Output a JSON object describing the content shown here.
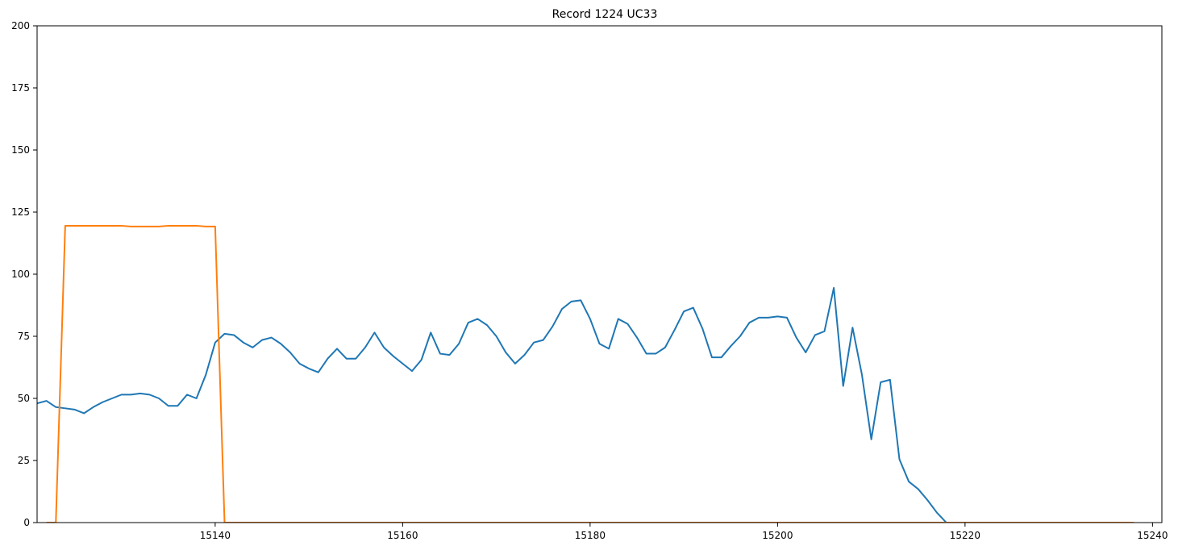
{
  "chart_data": {
    "type": "line",
    "title": "Record 1224 UC33",
    "xlabel": "",
    "ylabel": "",
    "xlim": [
      15121,
      15241
    ],
    "ylim": [
      0,
      200
    ],
    "xticks": [
      15140,
      15160,
      15180,
      15200,
      15220,
      15240
    ],
    "yticks": [
      0,
      25,
      50,
      75,
      100,
      125,
      150,
      175,
      200
    ],
    "grid": false,
    "legend": "none",
    "colors": [
      "#1f77b4",
      "#ff7f0e"
    ],
    "series": [
      {
        "x": [
          15121,
          15122,
          15123,
          15124,
          15125,
          15126,
          15127,
          15128,
          15129,
          15130,
          15131,
          15132,
          15133,
          15134,
          15135,
          15136,
          15137,
          15138,
          15139,
          15140,
          15141,
          15142,
          15143,
          15144,
          15145,
          15146,
          15147,
          15148,
          15149,
          15150,
          15151,
          15152,
          15153,
          15154,
          15155,
          15156,
          15157,
          15158,
          15159,
          15160,
          15161,
          15162,
          15163,
          15164,
          15165,
          15166,
          15167,
          15168,
          15169,
          15170,
          15171,
          15172,
          15173,
          15174,
          15175,
          15176,
          15177,
          15178,
          15179,
          15180,
          15181,
          15182,
          15183,
          15184,
          15185,
          15186,
          15187,
          15188,
          15189,
          15190,
          15191,
          15192,
          15193,
          15194,
          15195,
          15196,
          15197,
          15198,
          15199,
          15200,
          15201,
          15202,
          15203,
          15204,
          15205,
          15206,
          15207,
          15208,
          15209,
          15210,
          15211,
          15212,
          15213,
          15214,
          15215,
          15216,
          15217,
          15218,
          15219,
          15220,
          15221,
          15222,
          15223,
          15224,
          15225,
          15226,
          15227,
          15228,
          15229,
          15230,
          15231,
          15232,
          15233,
          15234,
          15235,
          15236,
          15237,
          15238
        ],
        "values": [
          48,
          49,
          46.5,
          46,
          45.5,
          44,
          46.5,
          48.5,
          50,
          51.5,
          51.5,
          52,
          51.5,
          50,
          47,
          47,
          51.5,
          50,
          59.5,
          72.5,
          76,
          75.5,
          72.5,
          70.5,
          73.5,
          74.5,
          72,
          68.5,
          64,
          62,
          60.5,
          66,
          70,
          66,
          66,
          70.5,
          76.5,
          70.5,
          67,
          64,
          61,
          65.5,
          76.5,
          68,
          67.5,
          72,
          80.5,
          82,
          79.5,
          75,
          68.5,
          64,
          67.5,
          72.5,
          73.5,
          79,
          86,
          89,
          89.5,
          82,
          72,
          70,
          82,
          80,
          74.5,
          68,
          68,
          70.5,
          77.5,
          85,
          86.5,
          78,
          66.5,
          66.5,
          71,
          75,
          80.5,
          82.5,
          82.5,
          83,
          82.5,
          74.5,
          68.5,
          75.5,
          77,
          94.5,
          55,
          78.5,
          59.5,
          33.5,
          56.5,
          57.5,
          25.5,
          16.5,
          13.5,
          9,
          4,
          0,
          0,
          0,
          0,
          0,
          0,
          0,
          0,
          0,
          0,
          0,
          0,
          0,
          0,
          0,
          0,
          0,
          0,
          0,
          0,
          0
        ]
      },
      {
        "x": [
          15122,
          15123,
          15124,
          15125,
          15126,
          15127,
          15128,
          15129,
          15130,
          15131,
          15132,
          15133,
          15134,
          15135,
          15136,
          15137,
          15138,
          15139,
          15140,
          15141,
          15150,
          15160,
          15170,
          15180,
          15190,
          15200,
          15210,
          15220,
          15230,
          15238
        ],
        "values": [
          0,
          0,
          119.5,
          119.5,
          119.5,
          119.5,
          119.5,
          119.5,
          119.5,
          119.2,
          119.2,
          119.2,
          119.2,
          119.5,
          119.5,
          119.5,
          119.5,
          119.2,
          119.2,
          0,
          0,
          0,
          0,
          0,
          0,
          0,
          0,
          0,
          0,
          0
        ]
      }
    ]
  }
}
